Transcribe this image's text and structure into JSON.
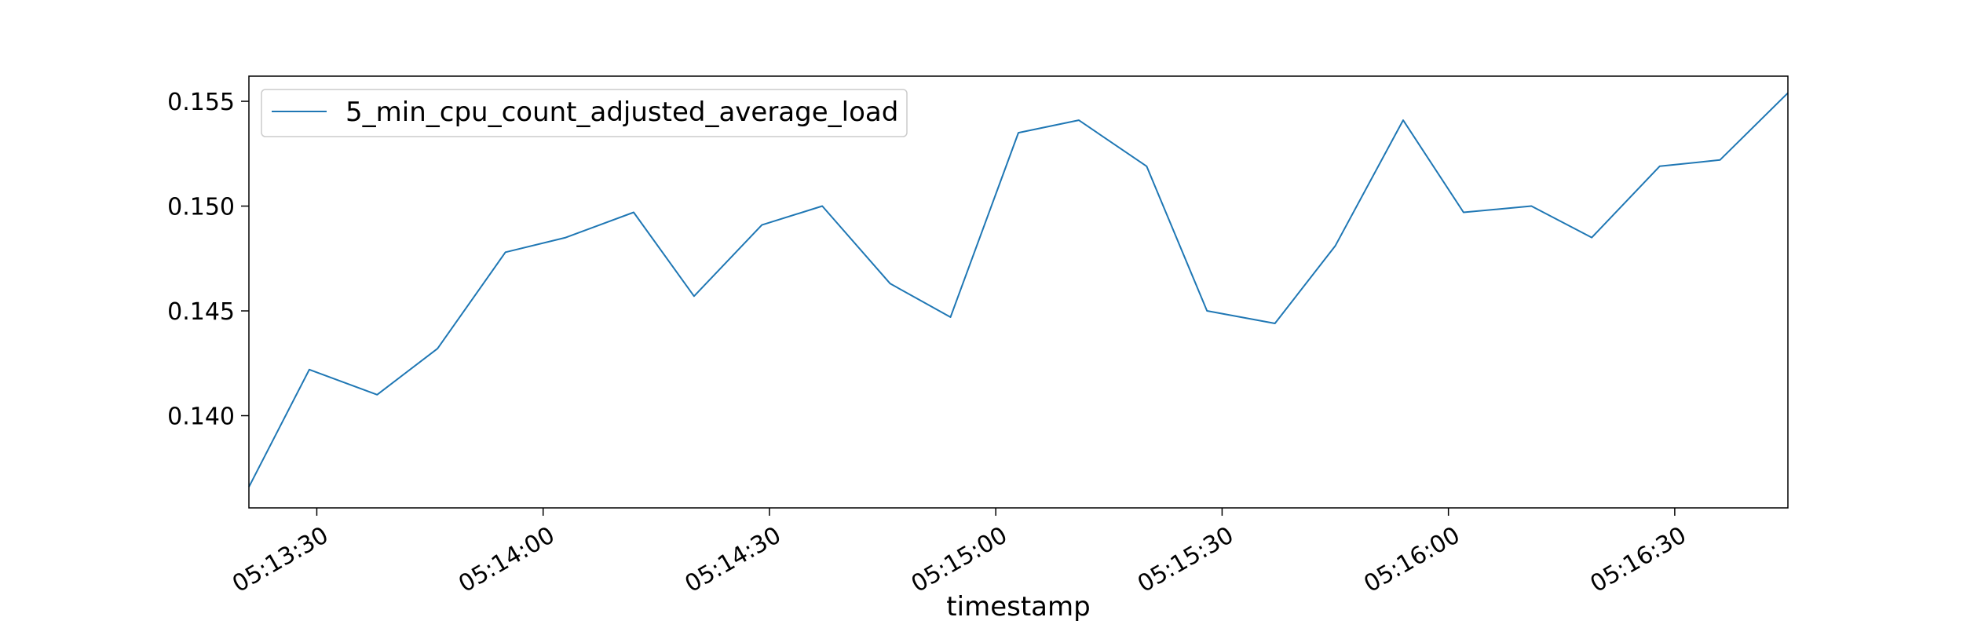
{
  "chart_data": {
    "type": "line",
    "title": "",
    "xlabel": "timestamp",
    "ylabel": "",
    "x": [
      "05:13:21",
      "05:13:29",
      "05:13:38",
      "05:13:46",
      "05:13:55",
      "05:14:03",
      "05:14:12",
      "05:14:20",
      "05:14:29",
      "05:14:37",
      "05:14:46",
      "05:14:54",
      "05:15:03",
      "05:15:11",
      "05:15:20",
      "05:15:28",
      "05:15:37",
      "05:15:45",
      "05:15:54",
      "05:16:02",
      "05:16:11",
      "05:16:19",
      "05:16:28",
      "05:16:36",
      "05:16:45"
    ],
    "series": [
      {
        "name": "5_min_cpu_count_adjusted_average_load",
        "color": "#1f77b4",
        "values": [
          0.1366,
          0.1422,
          0.141,
          0.1432,
          0.1478,
          0.1485,
          0.1497,
          0.1457,
          0.1491,
          0.15,
          0.1463,
          0.1447,
          0.1535,
          0.1541,
          0.1519,
          0.145,
          0.1444,
          0.1481,
          0.1541,
          0.1497,
          0.15,
          0.1485,
          0.1519,
          0.1522,
          0.1554
        ]
      }
    ],
    "xlim": [
      "05:13:21",
      "05:16:45"
    ],
    "ylim": [
      0.1356,
      0.1562
    ],
    "xticks": [
      "05:13:30",
      "05:14:00",
      "05:14:30",
      "05:15:00",
      "05:15:30",
      "05:16:00",
      "05:16:30"
    ],
    "yticks": [
      "0.140",
      "0.145",
      "0.150",
      "0.155"
    ],
    "ytick_values": [
      0.14,
      0.145,
      0.15,
      0.155
    ],
    "legend_position": "top-left",
    "grid": false
  }
}
